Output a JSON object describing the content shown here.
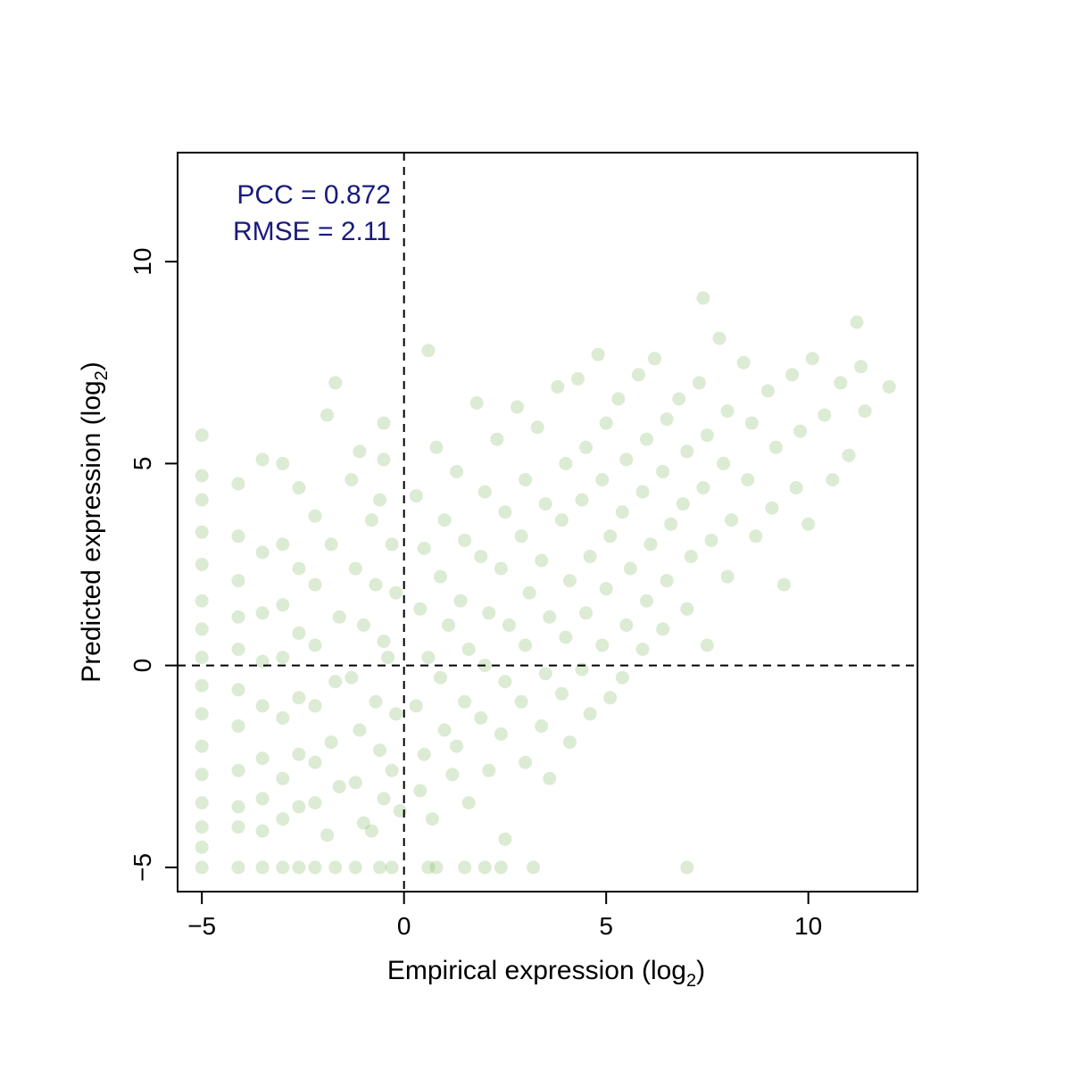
{
  "chart_data": {
    "type": "scatter",
    "title": "",
    "xlabel": "Empirical expression (log",
    "xlabel_sub": "2",
    "xlabel_close": ")",
    "ylabel": "Predicted expression (log",
    "ylabel_sub": "2",
    "ylabel_close": ")",
    "xlim": [
      -5.6,
      12.7
    ],
    "ylim": [
      -5.6,
      12.7
    ],
    "xticks": [
      -5,
      0,
      5,
      10
    ],
    "xtick_labels": [
      "−5",
      "0",
      "5",
      "10"
    ],
    "yticks": [
      -5,
      0,
      5,
      10
    ],
    "ytick_labels": [
      "−5",
      "0",
      "5",
      "10"
    ],
    "reference_lines": [
      {
        "orientation": "vertical",
        "value": 0,
        "style": "dashed"
      },
      {
        "orientation": "horizontal",
        "value": 0,
        "style": "dashed"
      }
    ],
    "annotations": [
      "PCC = 0.872",
      "RMSE = 2.11"
    ],
    "annotation_color": "#1a1a7e",
    "point_color": "#5fa336",
    "point_opacity": 0.22,
    "grid": false,
    "legend": "none",
    "series": [
      {
        "points": [
          [
            -5,
            5.7
          ],
          [
            -5,
            4.7
          ],
          [
            -5,
            4.1
          ],
          [
            -5,
            3.3
          ],
          [
            -5,
            2.5
          ],
          [
            -5,
            1.6
          ],
          [
            -5,
            0.9
          ],
          [
            -5,
            0.2
          ],
          [
            -5,
            -0.5
          ],
          [
            -5,
            -1.2
          ],
          [
            -5,
            -2.0
          ],
          [
            -5,
            -2.7
          ],
          [
            -5,
            -3.4
          ],
          [
            -5,
            -4.0
          ],
          [
            -5,
            -4.5
          ],
          [
            -5,
            -5.0
          ],
          [
            -4.1,
            4.5
          ],
          [
            -4.1,
            3.2
          ],
          [
            -4.1,
            2.1
          ],
          [
            -4.1,
            1.2
          ],
          [
            -4.1,
            0.4
          ],
          [
            -4.1,
            -0.6
          ],
          [
            -4.1,
            -1.5
          ],
          [
            -4.1,
            -2.6
          ],
          [
            -4.1,
            -3.5
          ],
          [
            -4.1,
            -4.0
          ],
          [
            -4.1,
            -5.0
          ],
          [
            -3.5,
            5.1
          ],
          [
            -3.5,
            2.8
          ],
          [
            -3.5,
            1.3
          ],
          [
            -3.5,
            0.1
          ],
          [
            -3.5,
            -1.0
          ],
          [
            -3.5,
            -2.3
          ],
          [
            -3.5,
            -3.3
          ],
          [
            -3.5,
            -4.1
          ],
          [
            -3.5,
            -5.0
          ],
          [
            -3.0,
            5.0
          ],
          [
            -3.0,
            3.0
          ],
          [
            -3.0,
            1.5
          ],
          [
            -3.0,
            0.2
          ],
          [
            -3.0,
            -1.3
          ],
          [
            -3.0,
            -2.8
          ],
          [
            -3.0,
            -3.8
          ],
          [
            -3.0,
            -5.0
          ],
          [
            -2.6,
            4.4
          ],
          [
            -2.6,
            2.4
          ],
          [
            -2.6,
            0.8
          ],
          [
            -2.6,
            -0.8
          ],
          [
            -2.6,
            -2.2
          ],
          [
            -2.6,
            -3.5
          ],
          [
            -2.6,
            -5.0
          ],
          [
            -2.2,
            3.7
          ],
          [
            -2.2,
            2.0
          ],
          [
            -2.2,
            0.5
          ],
          [
            -2.2,
            -1.0
          ],
          [
            -2.2,
            -2.4
          ],
          [
            -2.2,
            -3.4
          ],
          [
            -2.2,
            -5.0
          ],
          [
            -1.9,
            6.2
          ],
          [
            -1.7,
            7.0
          ],
          [
            -1.8,
            3.0
          ],
          [
            -1.6,
            1.2
          ],
          [
            -1.7,
            -0.4
          ],
          [
            -1.8,
            -1.9
          ],
          [
            -1.6,
            -3.0
          ],
          [
            -1.9,
            -4.2
          ],
          [
            -1.7,
            -5.0
          ],
          [
            -1.3,
            4.6
          ],
          [
            -1.1,
            5.3
          ],
          [
            -1.2,
            2.4
          ],
          [
            -1.0,
            1.0
          ],
          [
            -1.3,
            -0.3
          ],
          [
            -1.1,
            -1.6
          ],
          [
            -1.2,
            -2.9
          ],
          [
            -1.0,
            -3.9
          ],
          [
            -1.2,
            -5.0
          ],
          [
            -0.8,
            3.6
          ],
          [
            -0.6,
            4.1
          ],
          [
            -0.7,
            2.0
          ],
          [
            -0.5,
            0.6
          ],
          [
            -0.7,
            -0.9
          ],
          [
            -0.6,
            -2.1
          ],
          [
            -0.5,
            -3.3
          ],
          [
            -0.8,
            -4.1
          ],
          [
            -0.6,
            -5.0
          ],
          [
            -0.5,
            5.1
          ],
          [
            -0.3,
            3.0
          ],
          [
            -0.2,
            1.8
          ],
          [
            -0.4,
            0.2
          ],
          [
            -0.2,
            -1.2
          ],
          [
            -0.3,
            -2.6
          ],
          [
            -0.1,
            -3.6
          ],
          [
            -0.3,
            -5.0
          ],
          [
            -0.5,
            6.0
          ],
          [
            0.3,
            4.2
          ],
          [
            0.5,
            2.9
          ],
          [
            0.4,
            1.4
          ],
          [
            0.6,
            0.2
          ],
          [
            0.3,
            -1.0
          ],
          [
            0.5,
            -2.2
          ],
          [
            0.4,
            -3.1
          ],
          [
            0.7,
            -3.8
          ],
          [
            0.6,
            -5.0
          ],
          [
            0.8,
            5.4
          ],
          [
            1.0,
            3.6
          ],
          [
            0.9,
            2.2
          ],
          [
            1.1,
            1.0
          ],
          [
            0.9,
            -0.3
          ],
          [
            1.0,
            -1.6
          ],
          [
            1.2,
            -2.7
          ],
          [
            0.8,
            -5.0
          ],
          [
            0.6,
            7.8
          ],
          [
            1.3,
            4.8
          ],
          [
            1.5,
            3.1
          ],
          [
            1.4,
            1.6
          ],
          [
            1.6,
            0.4
          ],
          [
            1.5,
            -0.9
          ],
          [
            1.3,
            -2.0
          ],
          [
            1.6,
            -3.4
          ],
          [
            1.5,
            -5.0
          ],
          [
            1.8,
            6.5
          ],
          [
            2.0,
            4.3
          ],
          [
            1.9,
            2.7
          ],
          [
            2.1,
            1.3
          ],
          [
            2.0,
            0.0
          ],
          [
            1.9,
            -1.3
          ],
          [
            2.1,
            -2.6
          ],
          [
            2.0,
            -5.0
          ],
          [
            2.3,
            5.6
          ],
          [
            2.5,
            3.8
          ],
          [
            2.4,
            2.4
          ],
          [
            2.6,
            1.0
          ],
          [
            2.5,
            -0.4
          ],
          [
            2.4,
            -1.7
          ],
          [
            2.5,
            -4.3
          ],
          [
            2.4,
            -5.0
          ],
          [
            2.8,
            6.4
          ],
          [
            3.0,
            4.6
          ],
          [
            2.9,
            3.2
          ],
          [
            3.1,
            1.8
          ],
          [
            3.0,
            0.5
          ],
          [
            2.9,
            -0.9
          ],
          [
            3.0,
            -2.4
          ],
          [
            3.2,
            -5.0
          ],
          [
            3.3,
            5.9
          ],
          [
            3.5,
            4.0
          ],
          [
            3.4,
            2.6
          ],
          [
            3.6,
            1.2
          ],
          [
            3.5,
            -0.2
          ],
          [
            3.4,
            -1.5
          ],
          [
            3.6,
            -2.8
          ],
          [
            3.8,
            6.9
          ],
          [
            4.0,
            5.0
          ],
          [
            3.9,
            3.6
          ],
          [
            4.1,
            2.1
          ],
          [
            4.0,
            0.7
          ],
          [
            3.9,
            -0.7
          ],
          [
            4.1,
            -1.9
          ],
          [
            4.3,
            7.1
          ],
          [
            4.5,
            5.4
          ],
          [
            4.4,
            4.1
          ],
          [
            4.6,
            2.7
          ],
          [
            4.5,
            1.3
          ],
          [
            4.4,
            -0.1
          ],
          [
            4.6,
            -1.2
          ],
          [
            4.8,
            7.7
          ],
          [
            5.0,
            6.0
          ],
          [
            4.9,
            4.6
          ],
          [
            5.1,
            3.2
          ],
          [
            5.0,
            1.9
          ],
          [
            4.9,
            0.5
          ],
          [
            5.1,
            -0.8
          ],
          [
            5.3,
            6.6
          ],
          [
            5.5,
            5.1
          ],
          [
            5.4,
            3.8
          ],
          [
            5.6,
            2.4
          ],
          [
            5.5,
            1.0
          ],
          [
            5.4,
            -0.3
          ],
          [
            5.8,
            7.2
          ],
          [
            6.0,
            5.6
          ],
          [
            5.9,
            4.3
          ],
          [
            6.1,
            3.0
          ],
          [
            6.0,
            1.6
          ],
          [
            5.9,
            0.4
          ],
          [
            6.2,
            7.6
          ],
          [
            6.5,
            6.1
          ],
          [
            6.4,
            4.8
          ],
          [
            6.6,
            3.5
          ],
          [
            6.5,
            2.1
          ],
          [
            6.4,
            0.9
          ],
          [
            6.8,
            6.6
          ],
          [
            7.0,
            5.3
          ],
          [
            6.9,
            4.0
          ],
          [
            7.1,
            2.7
          ],
          [
            7.0,
            1.4
          ],
          [
            7.0,
            -5.0
          ],
          [
            7.4,
            9.1
          ],
          [
            7.3,
            7.0
          ],
          [
            7.5,
            5.7
          ],
          [
            7.4,
            4.4
          ],
          [
            7.6,
            3.1
          ],
          [
            7.5,
            0.5
          ],
          [
            7.8,
            8.1
          ],
          [
            8.0,
            6.3
          ],
          [
            7.9,
            5.0
          ],
          [
            8.1,
            3.6
          ],
          [
            8.0,
            2.2
          ],
          [
            8.4,
            7.5
          ],
          [
            8.6,
            6.0
          ],
          [
            8.5,
            4.6
          ],
          [
            8.7,
            3.2
          ],
          [
            9.0,
            6.8
          ],
          [
            9.2,
            5.4
          ],
          [
            9.1,
            3.9
          ],
          [
            9.4,
            2.0
          ],
          [
            9.6,
            7.2
          ],
          [
            9.8,
            5.8
          ],
          [
            9.7,
            4.4
          ],
          [
            10.0,
            3.5
          ],
          [
            10.1,
            7.6
          ],
          [
            10.4,
            6.2
          ],
          [
            10.6,
            4.6
          ],
          [
            10.8,
            7.0
          ],
          [
            11.0,
            5.2
          ],
          [
            11.2,
            8.5
          ],
          [
            11.4,
            6.3
          ],
          [
            11.3,
            7.4
          ],
          [
            12.0,
            6.9
          ]
        ]
      }
    ]
  }
}
